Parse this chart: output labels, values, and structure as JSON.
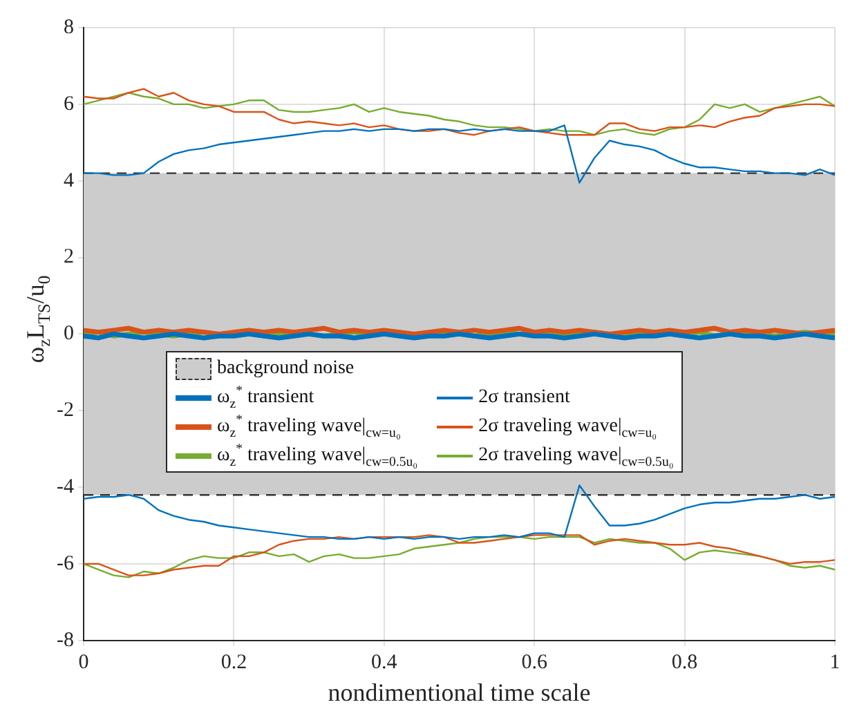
{
  "chart_data": {
    "type": "line",
    "xlabel": "nondimentional time scale",
    "ylabel": "ω$_{z}$L$_{TS}$/u$_{0}$",
    "x": [
      0,
      0.02,
      0.04,
      0.06,
      0.08,
      0.1,
      0.12,
      0.14,
      0.16,
      0.18,
      0.2,
      0.22,
      0.24,
      0.26,
      0.28,
      0.3,
      0.32,
      0.34,
      0.36,
      0.38,
      0.4,
      0.42,
      0.44,
      0.46,
      0.48,
      0.5,
      0.52,
      0.54,
      0.56,
      0.58,
      0.6,
      0.62,
      0.64,
      0.66,
      0.68,
      0.7,
      0.72,
      0.74,
      0.76,
      0.78,
      0.8,
      0.82,
      0.84,
      0.86,
      0.88,
      0.9,
      0.92,
      0.94,
      0.96,
      0.98,
      1
    ],
    "xlim": [
      0,
      1
    ],
    "xticks": [
      0,
      0.2,
      0.4,
      0.6,
      0.8,
      1
    ],
    "ylim": [
      -8,
      8
    ],
    "yticks": [
      -8,
      -6,
      -4,
      -2,
      0,
      2,
      4,
      6,
      8
    ],
    "grid": true,
    "legend": "bottom",
    "bands": [
      {
        "axis": "y",
        "from": -4.2,
        "to": 4.2,
        "label": "background noise",
        "color": "#cccccc"
      }
    ],
    "ref_lines": [
      {
        "axis": "y",
        "value": 4.2,
        "color": "#333333",
        "line_style": "dashed"
      },
      {
        "axis": "y",
        "value": -4.2,
        "color": "#333333",
        "line_style": "dashed"
      }
    ],
    "series": [
      {
        "name": "ω$_{z}$$^{*}$ transient",
        "color": "#0072bd",
        "values": [
          -0.05,
          -0.1,
          0,
          -0.05,
          -0.1,
          -0.05,
          0,
          -0.05,
          -0.1,
          -0.05,
          -0.05,
          0,
          -0.05,
          -0.1,
          -0.05,
          0,
          -0.05,
          -0.05,
          -0.1,
          -0.05,
          0,
          -0.05,
          -0.1,
          -0.05,
          -0.05,
          0,
          -0.05,
          -0.1,
          -0.05,
          0,
          -0.05,
          -0.05,
          -0.1,
          -0.05,
          0,
          -0.05,
          -0.1,
          -0.05,
          -0.05,
          0,
          -0.05,
          -0.1,
          -0.05,
          0,
          -0.05,
          -0.05,
          -0.1,
          -0.05,
          0,
          -0.05,
          -0.1
        ]
      },
      {
        "name": "ω$_{z}$$^{*}$ traveling wave|$_{cw=u₀}$",
        "color": "#d95319",
        "values": [
          0.1,
          0.05,
          0.1,
          0.15,
          0.05,
          0.1,
          0.05,
          0.1,
          0.05,
          0,
          0.05,
          0.1,
          0.05,
          0.1,
          0.05,
          0.1,
          0.15,
          0.05,
          0.1,
          0.05,
          0.1,
          0.05,
          0,
          0.05,
          0.1,
          0.05,
          0.1,
          0.05,
          0.1,
          0.15,
          0.05,
          0.1,
          0.05,
          0.1,
          0.05,
          0,
          0.05,
          0.1,
          0.05,
          0.1,
          0.05,
          0.1,
          0.15,
          0.05,
          0.1,
          0.05,
          0.1,
          0.05,
          0,
          0.05,
          0.1
        ]
      },
      {
        "name": "ω$_{z}$$^{*}$ traveling wave|$_{cw=0.5u₀}$",
        "color": "#77ac30",
        "values": [
          0,
          0.05,
          -0.05,
          0,
          0.05,
          0,
          -0.05,
          0,
          0.05,
          0,
          0,
          0.05,
          -0.05,
          0,
          0.05,
          0,
          -0.05,
          0,
          0.05,
          0,
          0,
          0.05,
          -0.05,
          0,
          0.05,
          0,
          -0.05,
          0,
          0.05,
          0,
          0,
          0.05,
          -0.05,
          0,
          0.05,
          0,
          -0.05,
          0,
          0.05,
          0,
          0,
          0.05,
          -0.05,
          0,
          0.05,
          0,
          -0.05,
          0,
          0.05,
          0,
          0
        ]
      },
      {
        "name": "2σ transient",
        "color": "#0072bd",
        "values": [
          4.2,
          4.2,
          4.15,
          4.15,
          4.2,
          4.5,
          4.7,
          4.8,
          4.85,
          4.95,
          5.0,
          5.05,
          5.1,
          5.15,
          5.2,
          5.25,
          5.3,
          5.3,
          5.35,
          5.3,
          5.35,
          5.35,
          5.3,
          5.35,
          5.35,
          5.3,
          5.35,
          5.3,
          5.35,
          5.3,
          5.3,
          5.3,
          5.45,
          3.95,
          4.6,
          5.05,
          4.95,
          4.9,
          4.8,
          4.6,
          4.45,
          4.35,
          4.35,
          4.3,
          4.25,
          4.25,
          4.2,
          4.2,
          4.15,
          4.3,
          4.15
        ]
      },
      {
        "name": "2σ traveling wave|$_{cw=u₀}$",
        "color": "#d95319",
        "values": [
          6.2,
          6.15,
          6.15,
          6.3,
          6.4,
          6.2,
          6.3,
          6.1,
          6.0,
          5.95,
          5.8,
          5.8,
          5.8,
          5.6,
          5.5,
          5.55,
          5.5,
          5.45,
          5.5,
          5.4,
          5.45,
          5.35,
          5.3,
          5.3,
          5.35,
          5.25,
          5.2,
          5.3,
          5.35,
          5.4,
          5.3,
          5.25,
          5.2,
          5.2,
          5.2,
          5.5,
          5.5,
          5.35,
          5.3,
          5.4,
          5.4,
          5.45,
          5.4,
          5.55,
          5.65,
          5.7,
          5.9,
          5.95,
          6.0,
          6.0,
          5.95
        ]
      },
      {
        "name": "2σ traveling wave|$_{cw=0.5u₀}$",
        "color": "#77ac30",
        "values": [
          6.0,
          6.1,
          6.2,
          6.3,
          6.2,
          6.15,
          6.0,
          6.0,
          5.9,
          5.95,
          6.0,
          6.1,
          6.1,
          5.85,
          5.8,
          5.8,
          5.85,
          5.9,
          6.0,
          5.8,
          5.9,
          5.8,
          5.75,
          5.7,
          5.6,
          5.55,
          5.45,
          5.4,
          5.4,
          5.35,
          5.3,
          5.35,
          5.3,
          5.3,
          5.2,
          5.3,
          5.35,
          5.25,
          5.2,
          5.35,
          5.4,
          5.6,
          6.0,
          5.9,
          6.0,
          5.8,
          5.9,
          6.0,
          6.1,
          6.2,
          5.95
        ]
      },
      {
        "color": "#0072bd",
        "values": [
          -4.3,
          -4.25,
          -4.25,
          -4.2,
          -4.3,
          -4.6,
          -4.75,
          -4.85,
          -4.9,
          -5.0,
          -5.05,
          -5.1,
          -5.15,
          -5.2,
          -5.25,
          -5.3,
          -5.3,
          -5.35,
          -5.35,
          -5.3,
          -5.35,
          -5.3,
          -5.35,
          -5.3,
          -5.3,
          -5.35,
          -5.3,
          -5.3,
          -5.25,
          -5.3,
          -5.2,
          -5.2,
          -5.3,
          -3.95,
          -4.5,
          -5.0,
          -5.0,
          -4.95,
          -4.85,
          -4.7,
          -4.55,
          -4.45,
          -4.4,
          -4.4,
          -4.35,
          -4.3,
          -4.3,
          -4.25,
          -4.2,
          -4.3,
          -4.25
        ]
      },
      {
        "color": "#d95319",
        "values": [
          -6.0,
          -6.0,
          -6.15,
          -6.3,
          -6.3,
          -6.25,
          -6.15,
          -6.1,
          -6.05,
          -6.05,
          -5.8,
          -5.8,
          -5.7,
          -5.5,
          -5.4,
          -5.35,
          -5.35,
          -5.3,
          -5.35,
          -5.3,
          -5.3,
          -5.3,
          -5.3,
          -5.25,
          -5.3,
          -5.45,
          -5.45,
          -5.4,
          -5.35,
          -5.3,
          -5.25,
          -5.25,
          -5.25,
          -5.25,
          -5.5,
          -5.4,
          -5.35,
          -5.4,
          -5.45,
          -5.5,
          -5.5,
          -5.45,
          -5.55,
          -5.6,
          -5.7,
          -5.8,
          -5.9,
          -6.0,
          -5.95,
          -5.95,
          -5.9
        ]
      },
      {
        "color": "#77ac30",
        "values": [
          -6.0,
          -6.15,
          -6.3,
          -6.35,
          -6.2,
          -6.25,
          -6.1,
          -5.9,
          -5.8,
          -5.85,
          -5.85,
          -5.7,
          -5.7,
          -5.8,
          -5.75,
          -5.95,
          -5.8,
          -5.75,
          -5.85,
          -5.85,
          -5.8,
          -5.75,
          -5.6,
          -5.55,
          -5.5,
          -5.45,
          -5.35,
          -5.3,
          -5.3,
          -5.3,
          -5.35,
          -5.3,
          -5.3,
          -5.3,
          -5.45,
          -5.35,
          -5.4,
          -5.45,
          -5.45,
          -5.6,
          -5.9,
          -5.7,
          -5.65,
          -5.7,
          -5.75,
          -5.8,
          -5.9,
          -6.05,
          -6.1,
          -6.05,
          -6.15
        ]
      }
    ]
  }
}
